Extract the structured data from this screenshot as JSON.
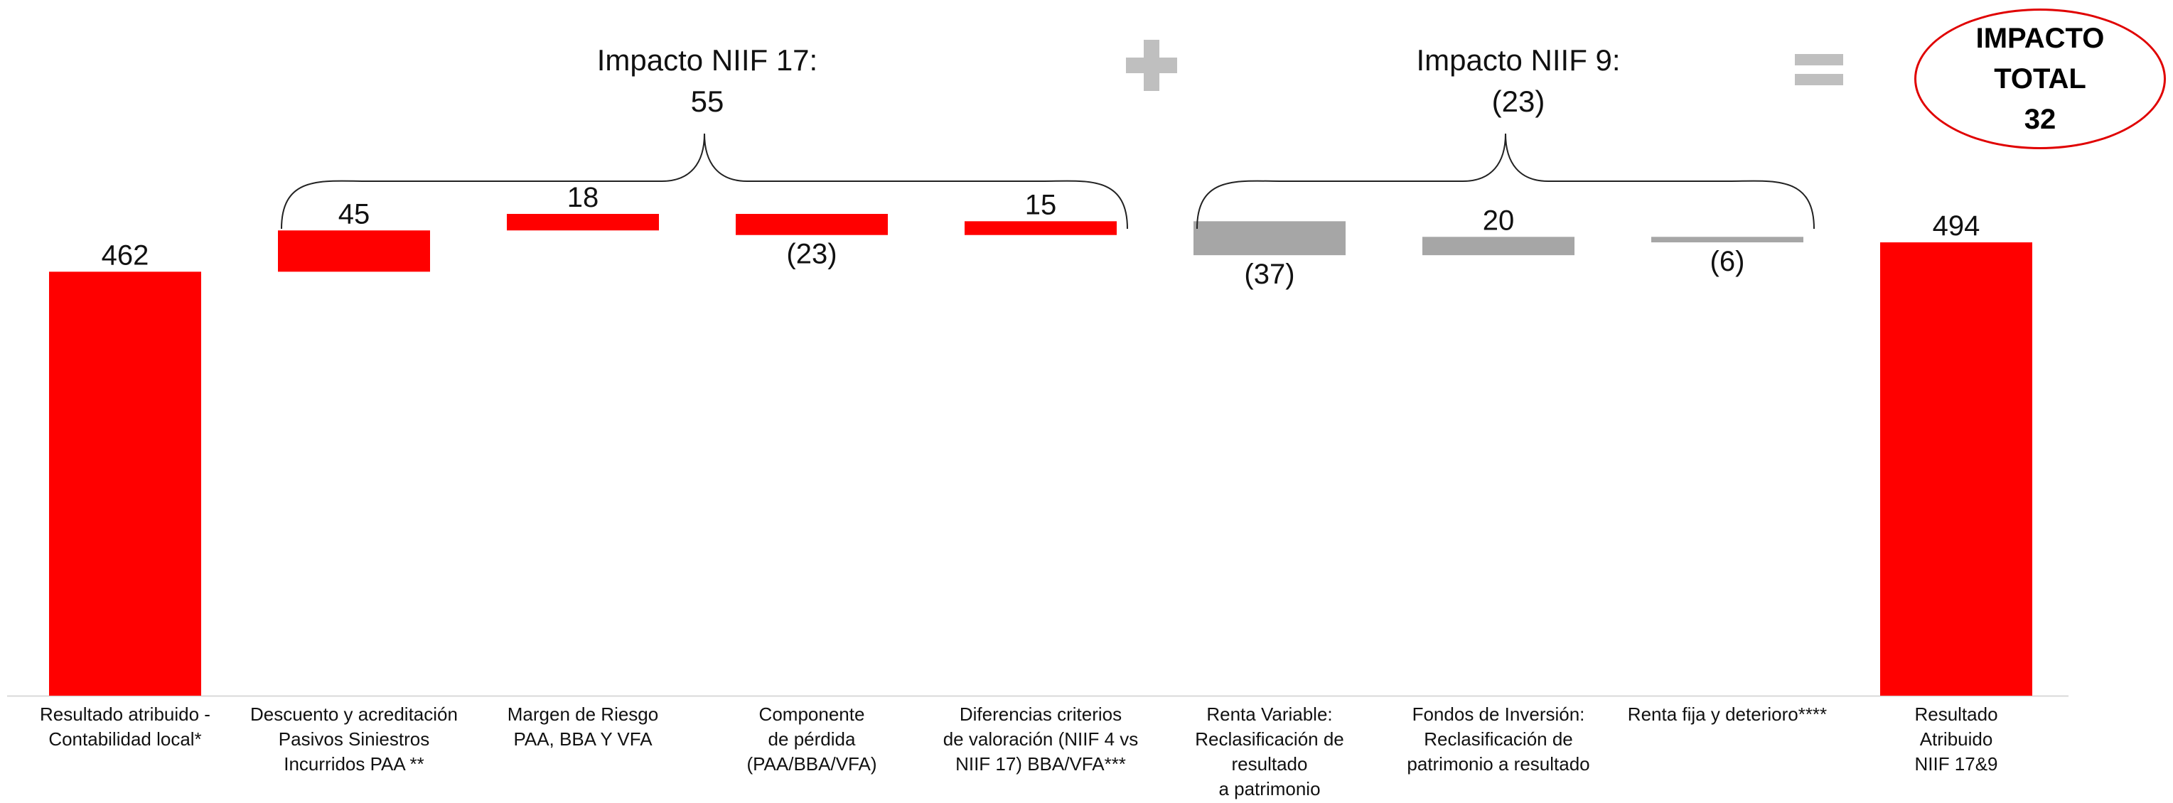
{
  "chart_data": {
    "type": "bar",
    "subtype": "waterfall",
    "categories": [
      "Resultado atribuido -\nContabilidad local*",
      "Descuento y acreditación\nPasivos Siniestros\nIncurridos PAA **",
      "Margen de Riesgo\nPAA, BBA Y VFA",
      "Componente\nde pérdida\n(PAA/BBA/VFA)",
      "Diferencias criterios\nde valoración (NIIF 4 vs\nNIIF 17) BBA/VFA***",
      "Renta Variable:\nReclasificación de\nresultado\na patrimonio",
      "Fondos de Inversión:\nReclasificación de\npatrimonio a resultado",
      "Renta fija y deterioro****",
      "Resultado\nAtribuido\nNIIF 17&9"
    ],
    "values": [
      462,
      45,
      18,
      -23,
      15,
      -37,
      20,
      -6,
      494
    ],
    "value_labels": [
      "462",
      "45",
      "18",
      "(23)",
      "15",
      "(37)",
      "20",
      "(6)",
      "494"
    ],
    "bar_kinds": [
      "total",
      "delta",
      "delta",
      "delta",
      "delta",
      "delta",
      "delta",
      "delta",
      "total"
    ],
    "colors": {
      "niif17": "#ff0000",
      "niif9": "#a6a6a6",
      "total": "#ff0000"
    },
    "bar_color_groups": [
      "total",
      "niif17",
      "niif17",
      "niif17",
      "niif17",
      "niif9",
      "niif9",
      "niif9",
      "total"
    ],
    "groups": [
      {
        "title": "Impacto NIIF 17:",
        "value": "55",
        "from_index": 1,
        "to_index": 4
      },
      {
        "title": "Impacto NIIF 9:",
        "value": "(23)",
        "from_index": 5,
        "to_index": 7
      }
    ],
    "operators": [
      "+",
      "="
    ],
    "total_impact": {
      "line1": "IMPACTO",
      "line2": "TOTAL",
      "value": "32"
    },
    "ylim": [
      0,
      620
    ],
    "grid": false,
    "legend": "none"
  }
}
